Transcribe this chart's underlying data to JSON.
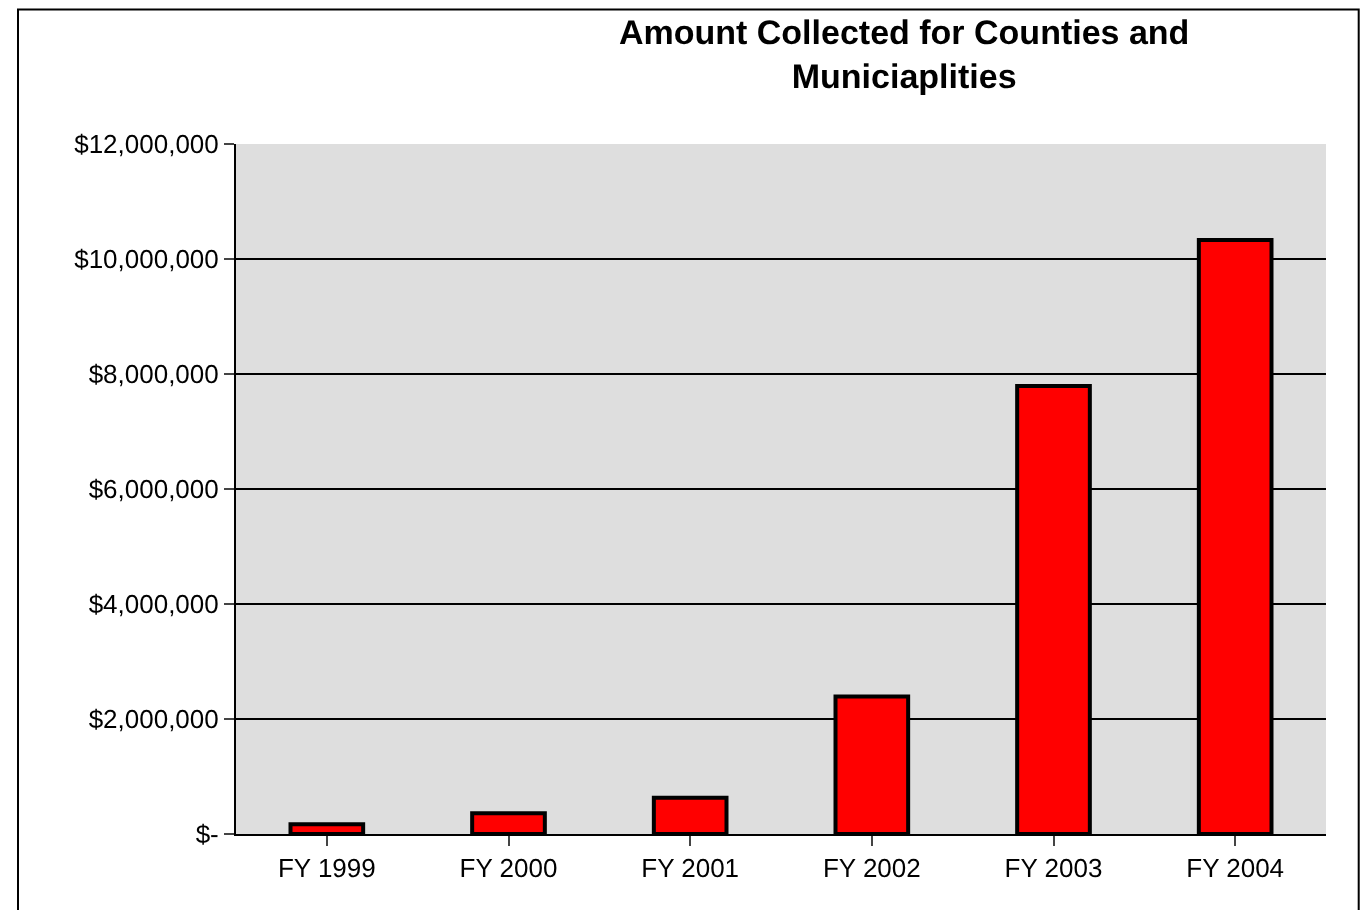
{
  "chart_data": {
    "type": "bar",
    "title": "Amount Collected for Counties and\nMuniciaplities",
    "categories": [
      "FY 1999",
      "FY 2000",
      "FY 2001",
      "FY 2002",
      "FY 2003",
      "FY 2004"
    ],
    "values": [
      170000,
      360000,
      630000,
      2390000,
      7790000,
      10330000
    ],
    "color": "#ff0000",
    "ylim": [
      0,
      12000000
    ],
    "yticks": [
      {
        "value": 0,
        "label": "$-"
      },
      {
        "value": 2000000,
        "label": "$2,000,000"
      },
      {
        "value": 4000000,
        "label": "$4,000,000"
      },
      {
        "value": 6000000,
        "label": "$6,000,000"
      },
      {
        "value": 8000000,
        "label": "$8,000,000"
      },
      {
        "value": 10000000,
        "label": "$10,000,000"
      },
      {
        "value": 12000000,
        "label": "$12,000,000"
      }
    ],
    "grid": "y",
    "legend": false
  }
}
